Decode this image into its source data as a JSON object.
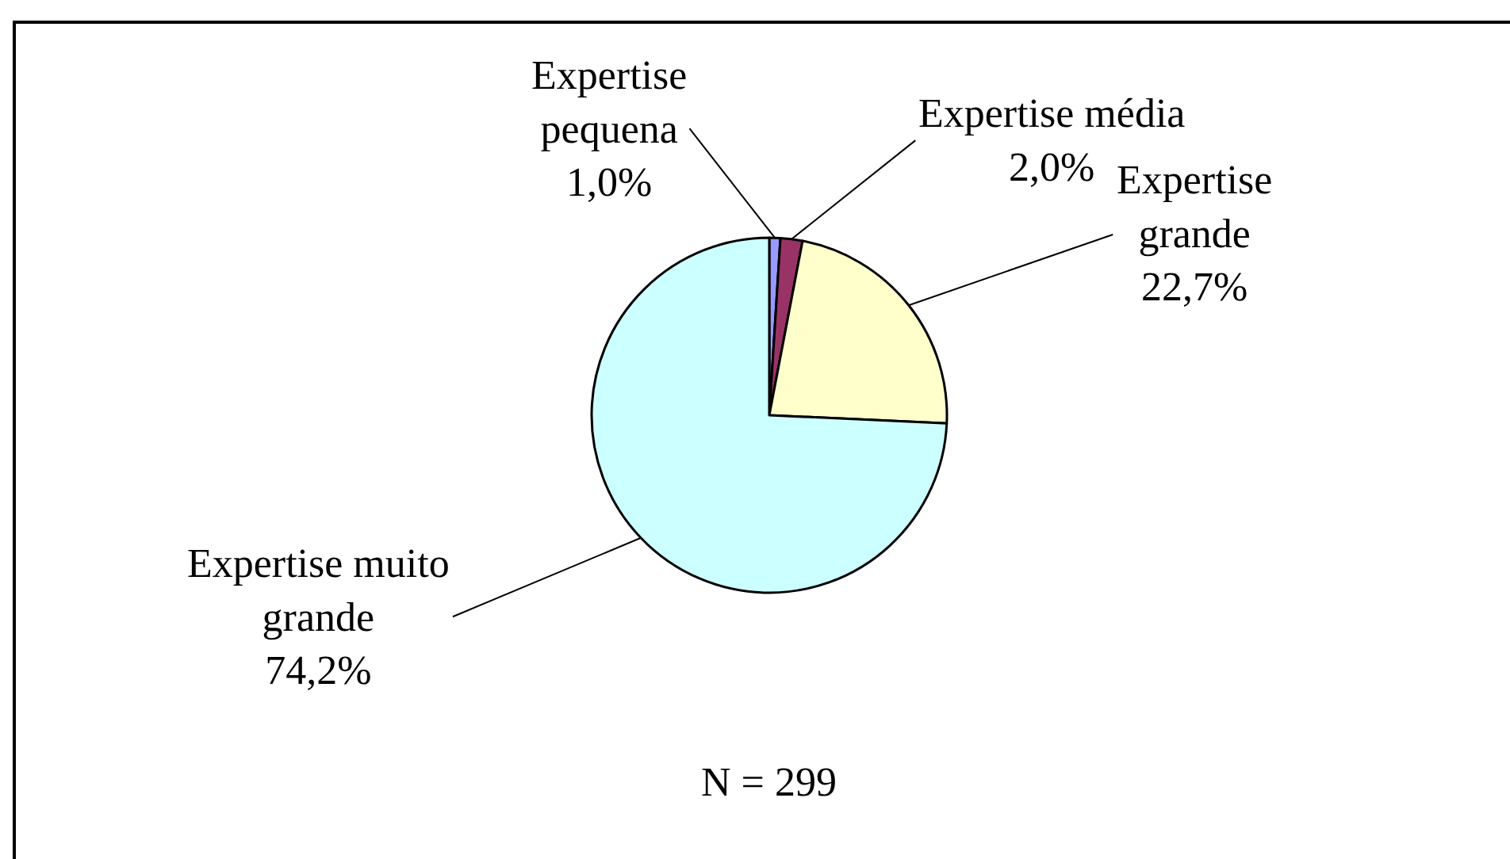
{
  "chart_data": {
    "type": "pie",
    "categories": [
      "Expertise pequena",
      "Expertise média",
      "Expertise grande",
      "Expertise muito grande"
    ],
    "values": [
      1.0,
      2.0,
      22.7,
      74.2
    ],
    "value_labels": [
      "1,0%",
      "2,0%",
      "22,7%",
      "74,2%"
    ],
    "colors": [
      "#9999ff",
      "#993366",
      "#ffffcc",
      "#ccffff"
    ],
    "annotations": [
      "N = 299"
    ],
    "legend": false
  }
}
